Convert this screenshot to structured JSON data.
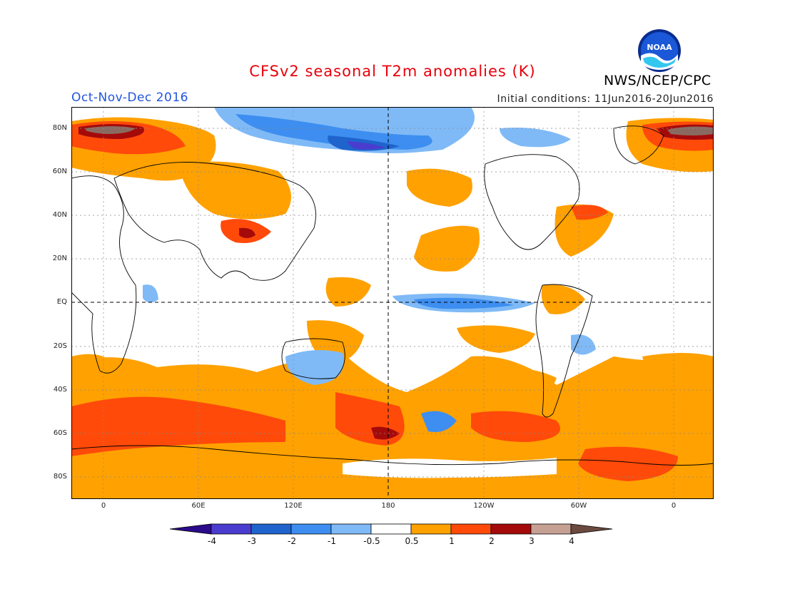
{
  "header": {
    "title": "CFSv2 seasonal T2m anomalies (K)",
    "season": "Oct-Nov-Dec 2016",
    "initial_conditions": "Initial conditions: 11Jun2016-20Jun2016",
    "agency": "NWS/NCEP/CPC",
    "logo_text": "NOAA"
  },
  "map": {
    "projection": "cylindrical equidistant, centered on 180",
    "lat_labels": [
      "80N",
      "60N",
      "40N",
      "20N",
      "EQ",
      "20S",
      "40S",
      "60S",
      "80S"
    ],
    "lon_labels": [
      "0",
      "60E",
      "120E",
      "180",
      "120W",
      "60W",
      "0"
    ],
    "reference_lines": [
      "equator",
      "dateline"
    ],
    "grid": "dotted"
  },
  "legend": {
    "labels": [
      "-4",
      "-3",
      "-2",
      "-1",
      "-0.5",
      "0.5",
      "1",
      "2",
      "3",
      "4"
    ],
    "colors": [
      "#2b0a8c",
      "#4a3ccf",
      "#1f64cc",
      "#3d8ef0",
      "#7fbaf7",
      "#ffffff",
      "#ffa100",
      "#ff4a0a",
      "#a50a0a",
      "#c6a193",
      "#6b4a40"
    ]
  },
  "colors": {
    "title": "#e8000b",
    "season": "#2255dd",
    "ocean_land_background": "#ffffff"
  }
}
